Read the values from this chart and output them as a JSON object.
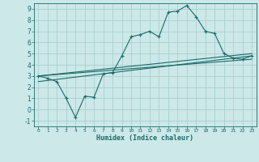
{
  "xlabel": "Humidex (Indice chaleur)",
  "bg_color": "#cce8e8",
  "grid_color": "#aad0d0",
  "line_color": "#1a6b6b",
  "xlim": [
    -0.5,
    23.5
  ],
  "ylim": [
    -1.5,
    9.5
  ],
  "xticks": [
    0,
    1,
    2,
    3,
    4,
    5,
    6,
    7,
    8,
    9,
    10,
    11,
    12,
    13,
    14,
    15,
    16,
    17,
    18,
    19,
    20,
    21,
    22,
    23
  ],
  "yticks": [
    -1,
    0,
    1,
    2,
    3,
    4,
    5,
    6,
    7,
    8,
    9
  ],
  "series1_x": [
    0,
    1,
    2,
    3,
    4,
    5,
    6,
    7,
    8,
    9,
    10,
    11,
    12,
    13,
    14,
    15,
    16,
    17,
    18,
    19,
    20,
    21,
    22,
    23
  ],
  "series1_y": [
    3.0,
    2.8,
    2.5,
    1.0,
    -0.7,
    1.2,
    1.1,
    3.2,
    3.3,
    4.8,
    6.5,
    6.7,
    7.0,
    6.5,
    8.7,
    8.8,
    9.3,
    8.3,
    7.0,
    6.8,
    5.0,
    4.6,
    4.5,
    4.8
  ],
  "series2_x": [
    0,
    23
  ],
  "series2_y": [
    3.0,
    5.0
  ],
  "series3_x": [
    0,
    23
  ],
  "series3_y": [
    2.5,
    4.8
  ],
  "series4_x": [
    0,
    23
  ],
  "series4_y": [
    3.0,
    4.5
  ]
}
